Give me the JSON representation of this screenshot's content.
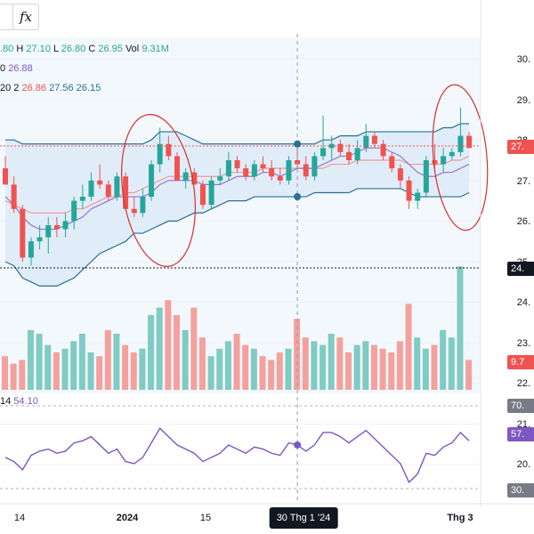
{
  "toolbar": {
    "indicator_button_glyph": "𝑓x",
    "icon": "function-icon"
  },
  "legend": {
    "ohlc_open_partial": ".80",
    "h_label": "H",
    "h_value": "27.10",
    "l_label": "L",
    "l_value": "26.80",
    "c_label": "C",
    "c_value": "26.95",
    "vol_label": "Vol",
    "vol_value": "9.31M",
    "ma_prefix": "0",
    "ma_value": "26.88",
    "bb_prefix": "20 2",
    "bb_basis": "26.86",
    "bb_upper": "27.56",
    "bb_lower": "26.15",
    "rsi_prefix": "14",
    "rsi_value": "54.10"
  },
  "price_axis": {
    "labels": [
      "30.",
      "29.",
      "28.",
      "27.",
      "26.",
      "25.",
      "24.",
      "23.",
      "22.",
      "21.",
      "20."
    ],
    "current_price_badge": "27.",
    "secondary_badge": "24.",
    "volume_badge": "9.7",
    "rsi_upper_badge": "70.",
    "rsi_value_badge": "57.",
    "rsi_lower_badge": "30."
  },
  "time_axis": {
    "labels": [
      "14",
      "2024",
      "15",
      "Thg 3"
    ],
    "crosshair_label": "30 Thg 1 '24"
  },
  "colors": {
    "up": "#26a69a",
    "down": "#ef5350",
    "band": "#2a6f97",
    "band_fill": "#e3f2fd",
    "ma": "#9575cd",
    "basis": "#ef9a9a",
    "rsi": "#7e57c2",
    "annotation": "#d32f2f"
  },
  "chart_data": {
    "type": "candlestick",
    "candles": [
      [
        27.3,
        27.6,
        26.9,
        26.9
      ],
      [
        26.9,
        27.1,
        26.2,
        26.3
      ],
      [
        26.3,
        26.4,
        25.0,
        25.1
      ],
      [
        25.1,
        25.6,
        24.9,
        25.5
      ],
      [
        25.5,
        25.9,
        25.3,
        25.6
      ],
      [
        25.6,
        26.1,
        25.2,
        25.9
      ],
      [
        25.9,
        26.1,
        25.6,
        25.8
      ],
      [
        25.8,
        26.2,
        25.6,
        26.0
      ],
      [
        26.0,
        26.6,
        25.8,
        26.5
      ],
      [
        26.5,
        26.9,
        26.3,
        26.6
      ],
      [
        26.6,
        27.2,
        26.5,
        27.0
      ],
      [
        27.0,
        27.4,
        26.8,
        26.9
      ],
      [
        26.9,
        27.0,
        26.5,
        26.6
      ],
      [
        26.6,
        27.2,
        26.5,
        27.1
      ],
      [
        27.1,
        27.2,
        26.3,
        26.3
      ],
      [
        26.3,
        26.6,
        26.1,
        26.2
      ],
      [
        26.2,
        26.8,
        26.1,
        26.6
      ],
      [
        26.6,
        27.5,
        26.5,
        27.4
      ],
      [
        27.4,
        28.3,
        27.2,
        27.9
      ],
      [
        27.9,
        28.1,
        27.5,
        27.6
      ],
      [
        27.6,
        27.7,
        27.0,
        27.0
      ],
      [
        27.0,
        27.3,
        26.8,
        27.2
      ],
      [
        27.2,
        27.3,
        26.9,
        26.9
      ],
      [
        26.9,
        27.0,
        26.3,
        26.4
      ],
      [
        26.4,
        27.1,
        26.3,
        27.0
      ],
      [
        27.0,
        27.3,
        26.9,
        27.1
      ],
      [
        27.1,
        27.7,
        27.0,
        27.5
      ],
      [
        27.5,
        27.6,
        27.2,
        27.3
      ],
      [
        27.3,
        27.4,
        27.0,
        27.1
      ],
      [
        27.1,
        27.5,
        27.0,
        27.4
      ],
      [
        27.4,
        27.6,
        27.2,
        27.3
      ],
      [
        27.3,
        27.5,
        27.0,
        27.1
      ],
      [
        27.1,
        27.3,
        26.9,
        27.0
      ],
      [
        27.0,
        27.6,
        26.9,
        27.5
      ],
      [
        27.5,
        27.8,
        27.3,
        27.4
      ],
      [
        27.4,
        27.6,
        27.0,
        27.1
      ],
      [
        27.1,
        27.7,
        27.0,
        27.6
      ],
      [
        27.6,
        28.6,
        27.5,
        27.8
      ],
      [
        27.8,
        28.1,
        27.5,
        27.9
      ],
      [
        27.9,
        28.0,
        27.6,
        27.7
      ],
      [
        27.7,
        27.9,
        27.4,
        27.5
      ],
      [
        27.5,
        28.0,
        27.4,
        27.8
      ],
      [
        27.8,
        28.4,
        27.7,
        28.1
      ],
      [
        28.1,
        28.2,
        27.8,
        27.9
      ],
      [
        27.9,
        28.0,
        27.5,
        27.6
      ],
      [
        27.6,
        27.7,
        27.2,
        27.3
      ],
      [
        27.3,
        27.4,
        26.8,
        27.0
      ],
      [
        27.0,
        27.1,
        26.3,
        26.5
      ],
      [
        26.5,
        26.8,
        26.3,
        26.7
      ],
      [
        26.7,
        27.6,
        26.6,
        27.5
      ],
      [
        27.5,
        27.9,
        27.3,
        27.4
      ],
      [
        27.4,
        27.8,
        27.2,
        27.6
      ],
      [
        27.6,
        27.8,
        27.5,
        27.7
      ],
      [
        27.7,
        28.8,
        27.6,
        28.1
      ],
      [
        28.1,
        28.2,
        27.8,
        27.8
      ]
    ],
    "upper_band": [
      28.0,
      28.0,
      27.9,
      27.9,
      27.9,
      27.9,
      27.9,
      27.9,
      27.9,
      27.9,
      27.9,
      27.9,
      27.9,
      27.9,
      27.9,
      27.9,
      27.9,
      28.0,
      28.2,
      28.2,
      28.2,
      28.1,
      28.0,
      27.9,
      27.9,
      27.9,
      27.9,
      27.9,
      27.9,
      27.9,
      27.9,
      27.9,
      27.9,
      27.9,
      27.9,
      27.9,
      27.9,
      28.0,
      28.0,
      28.1,
      28.1,
      28.1,
      28.2,
      28.2,
      28.2,
      28.2,
      28.2,
      28.2,
      28.2,
      28.2,
      28.2,
      28.3,
      28.3,
      28.4,
      28.4
    ],
    "lower_band": [
      25.0,
      24.9,
      24.6,
      24.5,
      24.4,
      24.4,
      24.4,
      24.5,
      24.6,
      24.8,
      25.0,
      25.2,
      25.3,
      25.4,
      25.5,
      25.7,
      25.7,
      25.8,
      25.9,
      26.0,
      26.0,
      26.1,
      26.2,
      26.2,
      26.3,
      26.4,
      26.5,
      26.5,
      26.5,
      26.6,
      26.6,
      26.6,
      26.6,
      26.6,
      26.6,
      26.6,
      26.7,
      26.7,
      26.7,
      26.7,
      26.7,
      26.8,
      26.8,
      26.8,
      26.8,
      26.8,
      26.8,
      26.7,
      26.6,
      26.6,
      26.6,
      26.6,
      26.6,
      26.6,
      26.7
    ],
    "ma": [
      26.6,
      26.4,
      26.1,
      25.9,
      25.8,
      25.8,
      25.8,
      25.9,
      26.0,
      26.1,
      26.3,
      26.4,
      26.5,
      26.6,
      26.6,
      26.6,
      26.6,
      26.7,
      26.9,
      27.0,
      27.0,
      27.0,
      27.0,
      26.9,
      26.9,
      26.9,
      27.0,
      27.1,
      27.1,
      27.1,
      27.2,
      27.2,
      27.1,
      27.2,
      27.3,
      27.3,
      27.3,
      27.4,
      27.5,
      27.6,
      27.6,
      27.7,
      27.8,
      27.8,
      27.8,
      27.7,
      27.6,
      27.4,
      27.2,
      27.1,
      27.1,
      27.2,
      27.2,
      27.3,
      27.4
    ],
    "basis": [
      26.5,
      26.4,
      26.3,
      26.2,
      26.2,
      26.2,
      26.2,
      26.2,
      26.3,
      26.3,
      26.4,
      26.5,
      26.6,
      26.6,
      26.7,
      26.7,
      26.8,
      26.9,
      27.0,
      27.1,
      27.1,
      27.1,
      27.1,
      27.1,
      27.1,
      27.1,
      27.2,
      27.2,
      27.2,
      27.2,
      27.3,
      27.3,
      27.3,
      27.3,
      27.3,
      27.3,
      27.3,
      27.3,
      27.4,
      27.4,
      27.4,
      27.5,
      27.5,
      27.5,
      27.5,
      27.5,
      27.5,
      27.4,
      27.4,
      27.4,
      27.4,
      27.4,
      27.5,
      27.5,
      27.6
    ],
    "volume": [
      0.9,
      0.7,
      0.8,
      1.6,
      1.5,
      1.2,
      1.0,
      1.1,
      1.3,
      1.5,
      1.0,
      0.9,
      1.6,
      1.5,
      1.2,
      1.0,
      1.1,
      2.0,
      2.2,
      2.4,
      2.0,
      1.6,
      2.2,
      1.4,
      0.9,
      1.1,
      1.3,
      1.5,
      1.2,
      1.1,
      0.9,
      0.8,
      1.0,
      1.1,
      1.9,
      1.4,
      1.3,
      1.2,
      1.5,
      1.4,
      1.0,
      1.2,
      1.3,
      1.2,
      1.1,
      1.0,
      1.3,
      2.3,
      1.4,
      1.1,
      1.2,
      1.6,
      1.4,
      3.3,
      0.8
    ],
    "rsi": [
      46,
      44,
      40,
      47,
      49,
      50,
      48,
      49,
      53,
      54,
      56,
      52,
      48,
      50,
      44,
      43,
      46,
      53,
      60,
      56,
      52,
      50,
      48,
      44,
      46,
      48,
      52,
      50,
      48,
      51,
      50,
      48,
      47,
      53,
      52,
      49,
      52,
      58,
      58,
      56,
      53,
      56,
      59,
      55,
      51,
      47,
      43,
      34,
      38,
      48,
      47,
      51,
      53,
      58,
      54
    ],
    "crosshair_index": 34,
    "price_range": [
      20,
      30
    ],
    "annotation_circles": 2
  }
}
